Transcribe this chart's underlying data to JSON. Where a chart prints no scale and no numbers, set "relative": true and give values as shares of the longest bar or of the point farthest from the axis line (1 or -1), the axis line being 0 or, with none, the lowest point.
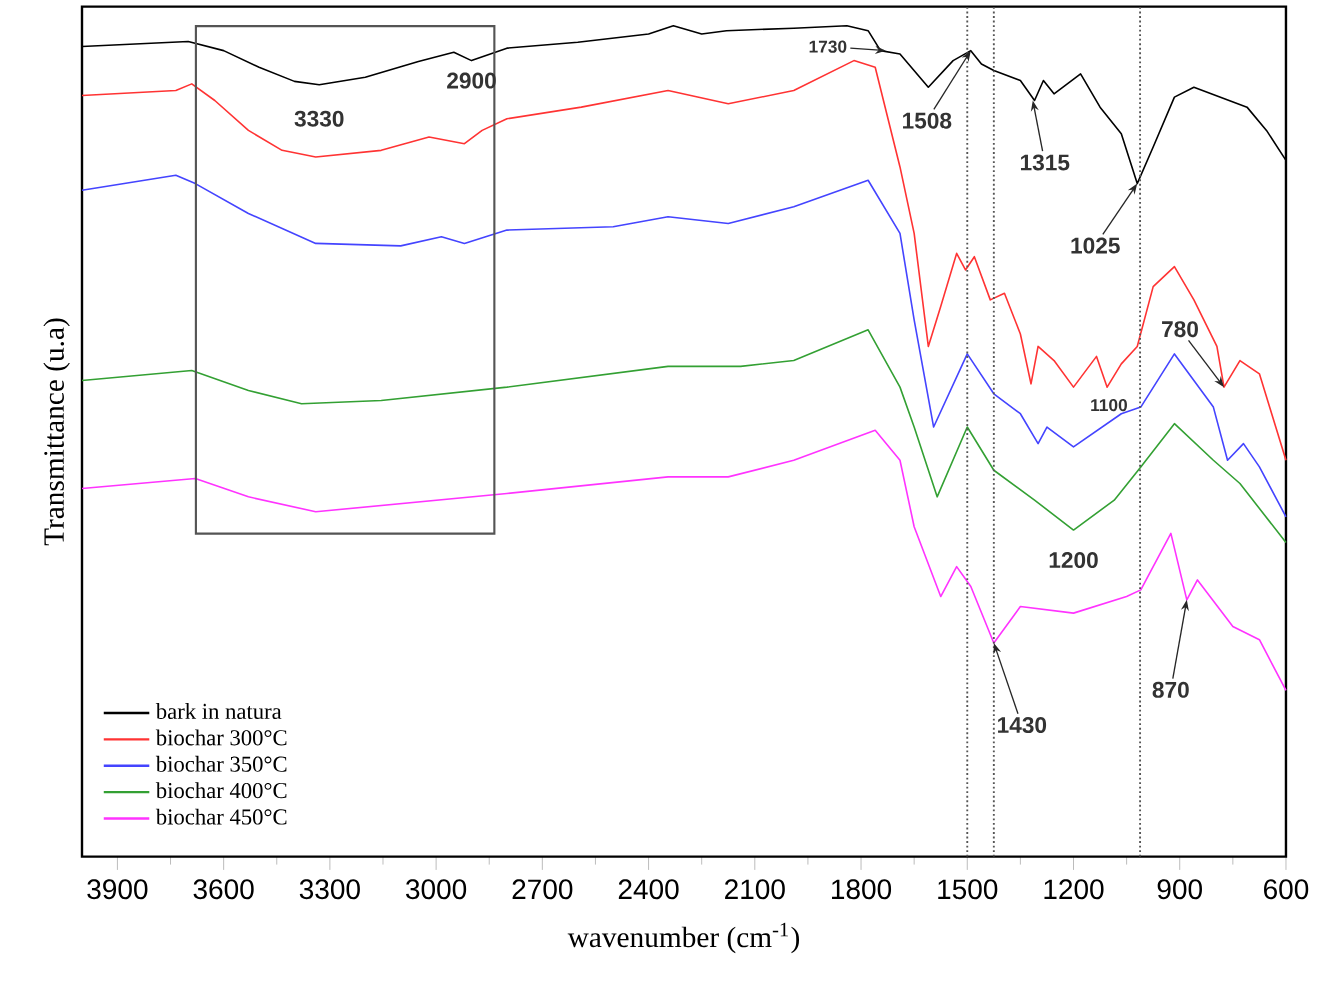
{
  "chart_data": {
    "type": "line",
    "relative": true,
    "xlabel": "wavenumber  (cm$^{-1}$)",
    "ylabel": "Transmittance (u.a)",
    "xlim": [
      4000,
      600
    ],
    "xticks": [
      3900,
      3600,
      3300,
      3000,
      2700,
      2400,
      2100,
      1800,
      1500,
      1200,
      900,
      600
    ],
    "legend": "bottom left",
    "grid": false,
    "marker": "none",
    "line_style": "solid",
    "series": [
      {
        "name": "bark in natura",
        "color": "#000000",
        "x": [
          4000,
          3700,
          3600,
          3500,
          3400,
          3330,
          3200,
          3050,
          2950,
          2900,
          2800,
          2600,
          2400,
          2330,
          2250,
          2180,
          1990,
          1840,
          1780,
          1745,
          1690,
          1610,
          1540,
          1490,
          1460,
          1425,
          1350,
          1310,
          1285,
          1255,
          1180,
          1125,
          1065,
          1020,
          975,
          915,
          860,
          785,
          710,
          655,
          600
        ],
        "values": [
          0.975,
          0.981,
          0.97,
          0.95,
          0.933,
          0.929,
          0.938,
          0.957,
          0.968,
          0.958,
          0.973,
          0.98,
          0.99,
          1,
          0.99,
          0.994,
          0.997,
          1,
          0.994,
          0.97,
          0.966,
          0.926,
          0.958,
          0.97,
          0.954,
          0.946,
          0.934,
          0.91,
          0.934,
          0.918,
          0.942,
          0.902,
          0.87,
          0.81,
          0.854,
          0.914,
          0.926,
          0.914,
          0.902,
          0.874,
          0.838
        ]
      },
      {
        "name": "biochar 300°C",
        "color": "#ff3333",
        "x": [
          4000,
          3735,
          3690,
          3625,
          3530,
          3435,
          3340,
          3155,
          3020,
          2920,
          2870,
          2800,
          2590,
          2345,
          2175,
          1990,
          1820,
          1760,
          1690,
          1650,
          1610,
          1575,
          1530,
          1505,
          1480,
          1435,
          1395,
          1350,
          1320,
          1300,
          1255,
          1200,
          1135,
          1105,
          1065,
          1020,
          975,
          915,
          860,
          795,
          775,
          730,
          675,
          600
        ],
        "values": [
          0.916,
          0.922,
          0.93,
          0.91,
          0.874,
          0.85,
          0.842,
          0.85,
          0.866,
          0.858,
          0.874,
          0.888,
          0.902,
          0.922,
          0.906,
          0.922,
          0.958,
          0.95,
          0.83,
          0.75,
          0.614,
          0.662,
          0.726,
          0.706,
          0.722,
          0.67,
          0.678,
          0.629,
          0.569,
          0.614,
          0.597,
          0.565,
          0.602,
          0.565,
          0.593,
          0.614,
          0.686,
          0.71,
          0.67,
          0.614,
          0.565,
          0.597,
          0.581,
          0.477
        ]
      },
      {
        "name": "biochar 350°C",
        "color": "#4444ff",
        "x": [
          4000,
          3735,
          3680,
          3530,
          3340,
          3100,
          2985,
          2920,
          2800,
          2500,
          2345,
          2175,
          1990,
          1780,
          1690,
          1650,
          1595,
          1500,
          1425,
          1350,
          1300,
          1275,
          1200,
          1065,
          1010,
          915,
          805,
          765,
          720,
          675,
          600
        ],
        "values": [
          0.802,
          0.82,
          0.81,
          0.774,
          0.738,
          0.735,
          0.746,
          0.738,
          0.754,
          0.758,
          0.77,
          0.762,
          0.782,
          0.814,
          0.75,
          0.646,
          0.517,
          0.605,
          0.557,
          0.533,
          0.497,
          0.517,
          0.493,
          0.533,
          0.541,
          0.605,
          0.541,
          0.477,
          0.497,
          0.469,
          0.409
        ]
      },
      {
        "name": "biochar 400°C",
        "color": "#33a033",
        "x": [
          4000,
          3690,
          3530,
          3380,
          3155,
          2800,
          2345,
          2140,
          1990,
          1780,
          1690,
          1650,
          1585,
          1500,
          1425,
          1310,
          1200,
          1085,
          1010,
          915,
          805,
          730,
          600
        ],
        "values": [
          0.573,
          0.585,
          0.561,
          0.545,
          0.549,
          0.565,
          0.59,
          0.59,
          0.597,
          0.634,
          0.565,
          0.517,
          0.433,
          0.517,
          0.465,
          0.429,
          0.393,
          0.429,
          0.469,
          0.521,
          0.477,
          0.449,
          0.378
        ]
      },
      {
        "name": "biochar 450°C",
        "color": "#ff33ff",
        "x": [
          4000,
          3680,
          3530,
          3340,
          2800,
          2345,
          2175,
          1990,
          1760,
          1690,
          1650,
          1575,
          1530,
          1490,
          1425,
          1350,
          1200,
          1050,
          1010,
          925,
          880,
          850,
          750,
          675,
          600
        ],
        "values": [
          0.443,
          0.455,
          0.433,
          0.415,
          0.437,
          0.457,
          0.457,
          0.477,
          0.513,
          0.477,
          0.397,
          0.313,
          0.349,
          0.325,
          0.257,
          0.301,
          0.293,
          0.313,
          0.321,
          0.389,
          0.309,
          0.333,
          0.277,
          0.261,
          0.2
        ]
      }
    ],
    "ref_lines": [
      {
        "axis": "x",
        "value": 1500,
        "line_style": "dotted",
        "color": "#555555"
      },
      {
        "axis": "x",
        "value": 1425,
        "line_style": "dotted",
        "color": "#555555"
      },
      {
        "axis": "x",
        "value": 1012,
        "line_style": "dotted",
        "color": "#555555"
      }
    ],
    "annotations": [
      {
        "text": "3330",
        "x": 3330,
        "y": 0.929
      },
      {
        "text": "2900",
        "x": 2900,
        "y": 0.958
      },
      {
        "text": "1730",
        "x": 1730,
        "y": 0.97
      },
      {
        "text": "1508",
        "x": 1490,
        "y": 0.97
      },
      {
        "text": "1315",
        "x": 1315,
        "y": 0.91
      },
      {
        "text": "1025",
        "x": 1020,
        "y": 0.81
      },
      {
        "text": "780",
        "x": 775,
        "y": 0.565
      },
      {
        "text": "1100",
        "x": 1100,
        "y": 0.565
      },
      {
        "text": "1200",
        "x": 1200,
        "y": 0.393
      },
      {
        "text": "1430",
        "x": 1425,
        "y": 0.257
      },
      {
        "text": "870",
        "x": 880,
        "y": 0.309
      }
    ]
  }
}
